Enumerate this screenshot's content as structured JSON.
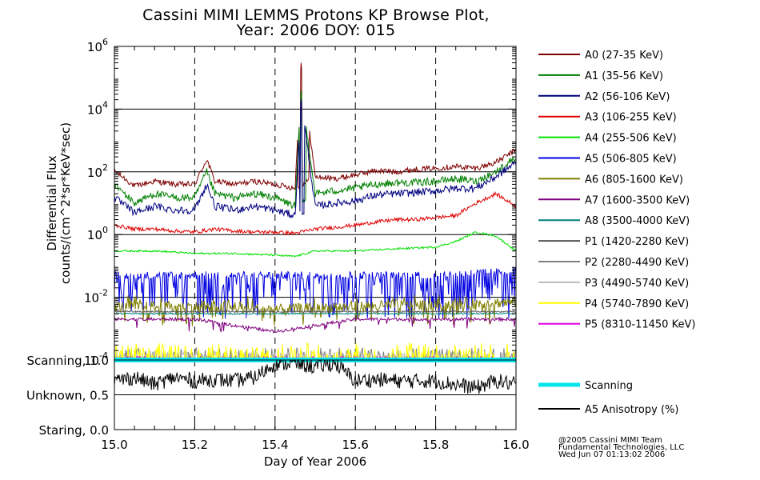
{
  "title": {
    "line1": "Cassini MIMI LEMMS Protons KP Browse Plot,",
    "line2": "Year: 2006 DOY: 015"
  },
  "credits": {
    "line1": "@2005 Cassini MIMI Team",
    "line2": "Fundamental Technologies, LLC",
    "line3": "Wed Jun 07 01:13:02 2006"
  },
  "chart_data": [
    {
      "type": "line",
      "title": "Cassini MIMI LEMMS Protons KP Browse Plot, Year: 2006 DOY: 015",
      "ylabel_line1": "Differential Flux",
      "ylabel_line2": "counts/(cm^2*sr*KeV*sec)",
      "yscale": "log",
      "ylim": [
        0.0001,
        1000000
      ],
      "yticks": [
        {
          "value": 0.0001,
          "mantissa": "10",
          "exp": "-4"
        },
        {
          "value": 0.01,
          "mantissa": "10",
          "exp": "-2"
        },
        {
          "value": 1,
          "mantissa": "10",
          "exp": "0"
        },
        {
          "value": 100,
          "mantissa": "10",
          "exp": "2"
        },
        {
          "value": 10000,
          "mantissa": "10",
          "exp": "4"
        },
        {
          "value": 1000000,
          "mantissa": "10",
          "exp": "6"
        }
      ],
      "xlim": [
        15.0,
        16.0
      ],
      "grid": true,
      "legend_position": "right",
      "series": [
        {
          "name": "A0 (27-35 KeV)",
          "color": "#7f0000",
          "x": [
            15.0,
            15.05,
            15.1,
            15.15,
            15.2,
            15.23,
            15.25,
            15.3,
            15.35,
            15.4,
            15.45,
            15.465,
            15.5,
            15.55,
            15.6,
            15.65,
            15.7,
            15.75,
            15.8,
            15.85,
            15.9,
            15.95,
            16.0
          ],
          "y": [
            110,
            35,
            50,
            40,
            40,
            250,
            50,
            40,
            50,
            40,
            30,
            300000,
            70,
            60,
            80,
            110,
            100,
            120,
            130,
            150,
            130,
            200,
            500
          ]
        },
        {
          "name": "A1 (35-56 KeV)",
          "color": "#007f00",
          "x": [
            15.0,
            15.05,
            15.1,
            15.15,
            15.2,
            15.23,
            15.25,
            15.3,
            15.35,
            15.4,
            15.45,
            15.465,
            15.5,
            15.55,
            15.6,
            15.65,
            15.7,
            15.75,
            15.8,
            15.85,
            15.9,
            15.95,
            16.0
          ],
          "y": [
            40,
            10,
            20,
            15,
            15,
            100,
            20,
            15,
            20,
            15,
            8,
            40000,
            20,
            25,
            30,
            40,
            45,
            45,
            50,
            60,
            50,
            100,
            300
          ]
        },
        {
          "name": "A2 (56-106 KeV)",
          "color": "#00007f",
          "x": [
            15.0,
            15.05,
            15.1,
            15.15,
            15.2,
            15.23,
            15.25,
            15.3,
            15.35,
            15.4,
            15.45,
            15.465,
            15.5,
            15.55,
            15.6,
            15.65,
            15.7,
            15.75,
            15.8,
            15.85,
            15.9,
            15.95,
            16.0
          ],
          "y": [
            15,
            5,
            8,
            6,
            6,
            40,
            8,
            6,
            8,
            6,
            4,
            20000,
            8,
            10,
            12,
            18,
            20,
            22,
            25,
            30,
            30,
            70,
            200
          ]
        },
        {
          "name": "A3 (106-255 KeV)",
          "color": "#e00000",
          "x": [
            15.0,
            15.05,
            15.1,
            15.15,
            15.2,
            15.25,
            15.3,
            15.35,
            15.4,
            15.45,
            15.5,
            15.55,
            15.6,
            15.65,
            15.7,
            15.75,
            15.8,
            15.85,
            15.9,
            15.95,
            16.0
          ],
          "y": [
            2,
            1.5,
            1.5,
            1.3,
            1.2,
            1.5,
            1.3,
            1.2,
            1.2,
            1.1,
            1.5,
            1.7,
            2.0,
            2.5,
            3.0,
            3.0,
            3.5,
            4.0,
            10,
            20,
            8
          ]
        },
        {
          "name": "A4 (255-506 KeV)",
          "color": "#00e000",
          "x": [
            15.0,
            15.1,
            15.2,
            15.3,
            15.4,
            15.45,
            15.5,
            15.6,
            15.7,
            15.8,
            15.85,
            15.9,
            15.95,
            16.0
          ],
          "y": [
            0.3,
            0.3,
            0.25,
            0.25,
            0.22,
            0.2,
            0.3,
            0.3,
            0.35,
            0.4,
            0.6,
            1.2,
            0.9,
            0.3
          ]
        },
        {
          "name": "A5 (506-805 KeV)",
          "color": "#0000e0",
          "x": [
            15.0,
            15.2,
            15.4,
            15.6,
            15.8,
            16.0
          ],
          "y": [
            0.05,
            0.05,
            0.05,
            0.05,
            0.05,
            0.07
          ]
        },
        {
          "name": "A6 (805-1600 KeV)",
          "color": "#7f7f00",
          "x": [
            15.0,
            15.2,
            15.4,
            15.6,
            15.8,
            16.0
          ],
          "y": [
            0.005,
            0.005,
            0.004,
            0.005,
            0.006,
            0.007
          ]
        },
        {
          "name": "A7 (1600-3500 KeV)",
          "color": "#7f007f",
          "x": [
            15.0,
            15.2,
            15.4,
            15.6,
            15.8,
            16.0
          ],
          "y": [
            0.002,
            0.002,
            0.0008,
            0.002,
            0.002,
            0.002
          ]
        },
        {
          "name": "A8 (3500-4000 KeV)",
          "color": "#007f7f",
          "x": [
            15.0,
            15.2,
            15.4,
            15.6,
            15.8,
            16.0
          ],
          "y": [
            0.003,
            0.003,
            0.003,
            0.003,
            0.003,
            0.003
          ]
        },
        {
          "name": "P1 (1420-2280 KeV)",
          "color": "#555555",
          "x": [
            15.0,
            15.2,
            15.4,
            15.6,
            15.8,
            16.0
          ],
          "y": [
            0.0035,
            0.0035,
            0.0035,
            0.0035,
            0.0035,
            0.0035
          ]
        },
        {
          "name": "P2 (2280-4490 KeV)",
          "color": "#7f7f7f",
          "x": [
            15.0,
            15.2,
            15.4,
            15.6,
            15.8,
            16.0
          ],
          "y": [
            0.00015,
            0.00015,
            0.00015,
            0.00015,
            0.00015,
            0.00015
          ]
        },
        {
          "name": "P3 (4490-5740 KeV)",
          "color": "#bbbbbb",
          "x": [
            15.0,
            15.2,
            15.4,
            15.6,
            15.8,
            16.0
          ],
          "y": [
            0.00015,
            0.00015,
            0.00015,
            0.00015,
            0.00015,
            0.00015
          ]
        },
        {
          "name": "P4 (5740-7890 KeV)",
          "color": "#ffff00",
          "x": [
            15.0,
            15.2,
            15.4,
            15.6,
            15.8,
            16.0
          ],
          "y": [
            0.00018,
            0.00018,
            0.00018,
            0.00018,
            0.00018,
            0.00018
          ]
        },
        {
          "name": "P5 (8310-11450 KeV)",
          "color": "#e000e0",
          "x": [
            15.0,
            15.2,
            15.4,
            15.6,
            15.8,
            16.0
          ],
          "y": [
            0.00012,
            0.00012,
            0.00012,
            0.00012,
            0.00012,
            0.00012
          ]
        }
      ]
    },
    {
      "type": "line",
      "xlabel": "Day of Year 2006",
      "xlim": [
        15.0,
        16.0
      ],
      "xticks": [
        "15.0",
        "15.2",
        "15.4",
        "15.6",
        "15.8",
        "16.0"
      ],
      "ylim": [
        0.0,
        1.0
      ],
      "yticks": [
        {
          "value": 1.0,
          "label": "Scanning, 1.0"
        },
        {
          "value": 0.5,
          "label": "Unknown, 0.5"
        },
        {
          "value": 0.0,
          "label": "Staring, 0.0"
        }
      ],
      "grid": true,
      "legend_position": "right",
      "series": [
        {
          "name": "Scanning",
          "color": "#00e5ee",
          "x": [
            15.0,
            16.0
          ],
          "y": [
            1.0,
            1.0
          ]
        },
        {
          "name": "A5 Anisotropy (%)",
          "color": "#000000",
          "x": [
            15.0,
            15.05,
            15.1,
            15.15,
            15.2,
            15.25,
            15.3,
            15.35,
            15.4,
            15.45,
            15.5,
            15.55,
            15.6,
            15.65,
            15.7,
            15.75,
            15.8,
            15.85,
            15.9,
            15.95,
            16.0
          ],
          "y": [
            0.7,
            0.75,
            0.65,
            0.75,
            0.7,
            0.72,
            0.7,
            0.75,
            0.95,
            0.95,
            0.9,
            0.95,
            0.7,
            0.72,
            0.7,
            0.7,
            0.7,
            0.65,
            0.6,
            0.7,
            0.65
          ]
        }
      ]
    }
  ]
}
